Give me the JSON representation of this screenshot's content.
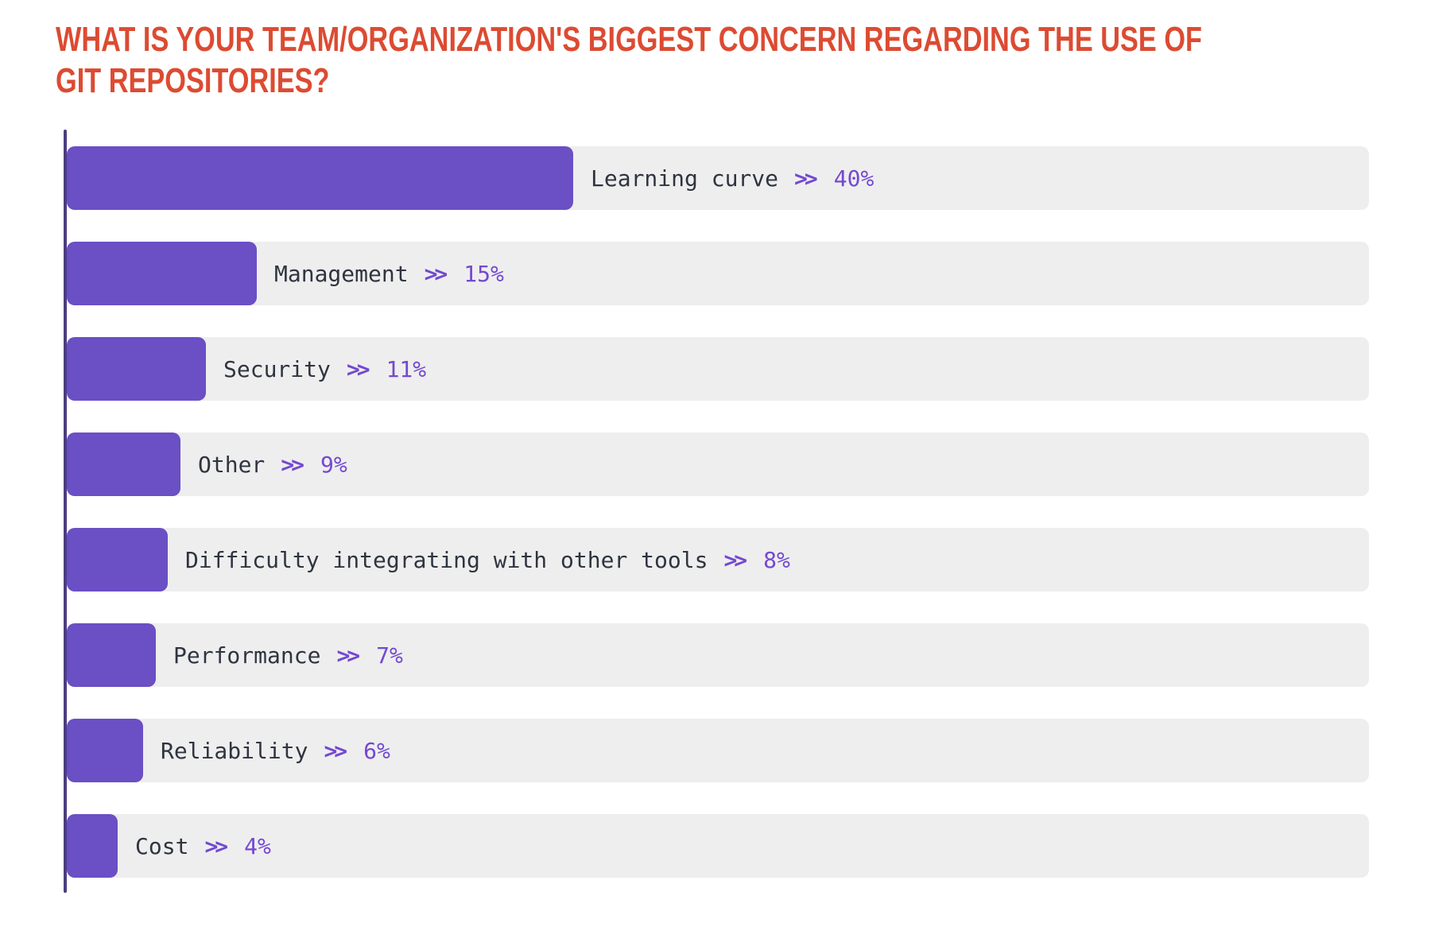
{
  "header": {
    "title_lines": [
      "WHAT IS YOUR TEAM/ORGANIZATION'S BIGGEST CONCERN REGARDING THE USE OF",
      "GIT REPOSITORIES?"
    ]
  },
  "colors": {
    "title": "#DC4B32",
    "bar": "#6A4FC5",
    "track": "#EEEEEE",
    "axis": "#4B3D80",
    "category_text": "#2F3440",
    "accent_purple": "#7349CF",
    "background": "#FFFFFF"
  },
  "chart_data": {
    "type": "bar",
    "orientation": "horizontal",
    "title": "WHAT IS YOUR TEAM/ORGANIZATION'S BIGGEST CONCERN REGARDING THE USE OF GIT REPOSITORIES?",
    "categories": [
      "Learning curve",
      "Management",
      "Security",
      "Other",
      "Difficulty integrating with other tools",
      "Performance",
      "Reliability",
      "Cost"
    ],
    "values": [
      40,
      15,
      11,
      9,
      8,
      7,
      6,
      4
    ],
    "unit": "%",
    "separator": ">>",
    "xlabel": "",
    "ylabel": "",
    "xlim": [
      0,
      103
    ],
    "grid": false,
    "legend": "none",
    "value_labels": "outside-right of bars, after category name and >> separator"
  }
}
